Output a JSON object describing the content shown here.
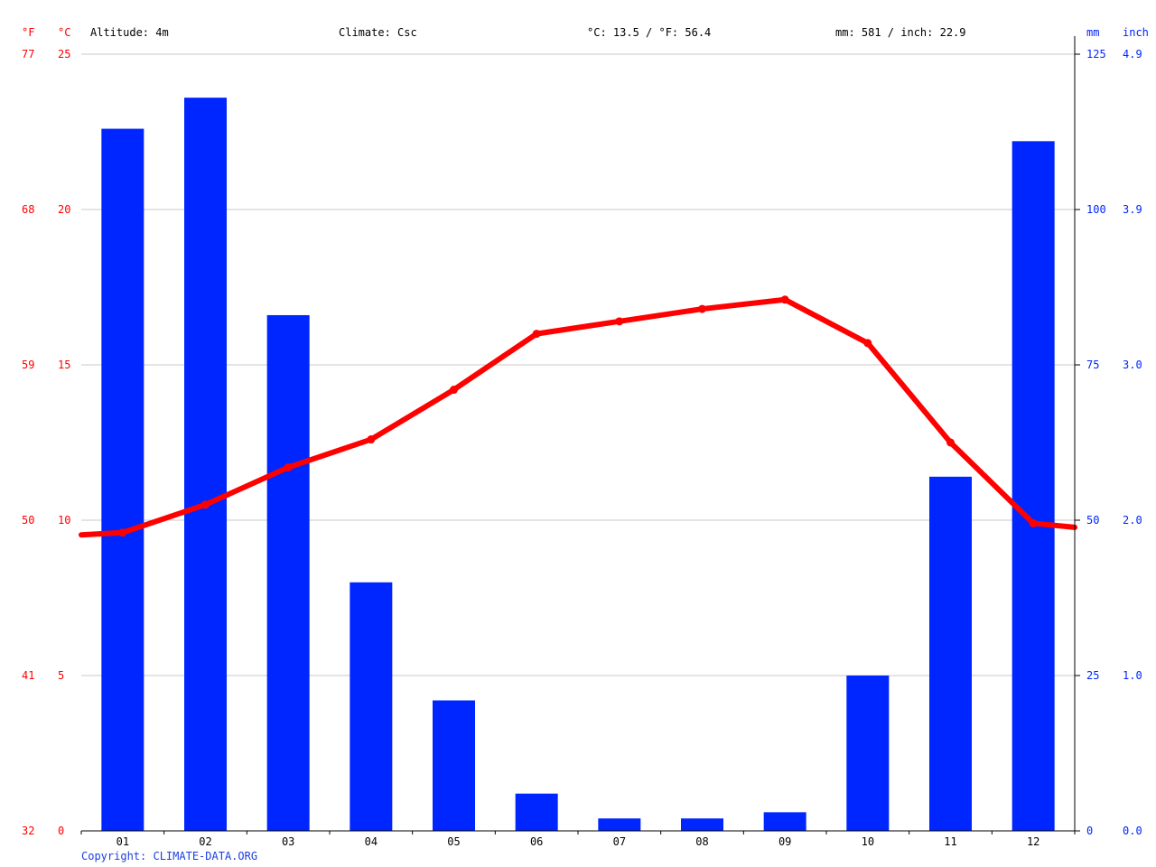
{
  "header": {
    "unit_f": "°F",
    "unit_c": "°C",
    "altitude": "Altitude: 4m",
    "climate": "Climate: Csc",
    "temp_summary": "°C: 13.5 / °F: 56.4",
    "precip_summary": "mm: 581 / inch: 22.9",
    "unit_mm": "mm",
    "unit_inch": "inch"
  },
  "copyright": "Copyright: CLIMATE-DATA.ORG",
  "colors": {
    "temperature": "#ff0000",
    "precipitation": "#0026ff",
    "grid": "#c8c8c8"
  },
  "chart_data": {
    "type": "bar",
    "categories": [
      "01",
      "02",
      "03",
      "04",
      "05",
      "06",
      "07",
      "08",
      "09",
      "10",
      "11",
      "12"
    ],
    "series": [
      {
        "type": "bar",
        "axis": "right",
        "values": [
          113,
          118,
          83,
          40,
          21,
          6,
          2,
          2,
          3,
          25,
          57,
          111
        ]
      },
      {
        "type": "line",
        "axis": "left",
        "values": [
          9.6,
          10.5,
          11.7,
          12.6,
          14.2,
          16.0,
          16.4,
          16.8,
          17.1,
          15.7,
          12.5,
          9.9
        ]
      }
    ],
    "left_axis_c": {
      "ticks": [
        "0",
        "5",
        "10",
        "15",
        "20",
        "25"
      ],
      "ylim": [
        0,
        25
      ]
    },
    "left_axis_f": {
      "ticks": [
        "32",
        "41",
        "50",
        "59",
        "68",
        "77"
      ]
    },
    "right_axis_mm": {
      "ticks": [
        "0",
        "25",
        "50",
        "75",
        "100",
        "125"
      ],
      "ylim": [
        0,
        125
      ]
    },
    "right_axis_inch": {
      "ticks": [
        "0.0",
        "1.0",
        "2.0",
        "3.0",
        "3.9",
        "4.9"
      ]
    },
    "grid": true
  }
}
